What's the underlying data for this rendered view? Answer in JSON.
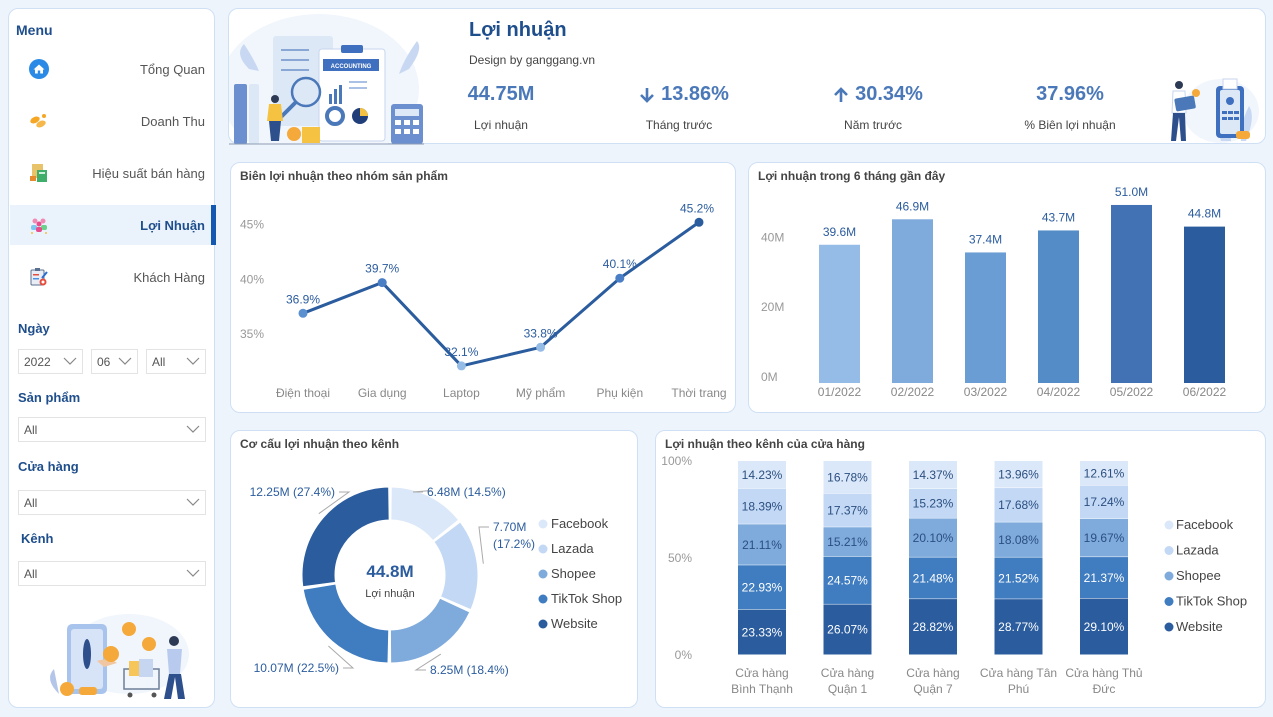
{
  "sidebar": {
    "menu_title": "Menu",
    "items": [
      {
        "label": "Tổng Quan",
        "icon": "home-icon",
        "active": false
      },
      {
        "label": "Doanh Thu",
        "icon": "coins-icon",
        "active": false
      },
      {
        "label": "Hiệu suất bán hàng",
        "icon": "calculator-icon",
        "active": false
      },
      {
        "label": "Lợi Nhuận",
        "icon": "team-icon",
        "active": true
      },
      {
        "label": "Khách Hàng",
        "icon": "clipboard-icon",
        "active": false
      }
    ],
    "filters": {
      "date_label": "Ngày",
      "year": "2022",
      "month": "06",
      "day": "All",
      "product_label": "Sản phẩm",
      "product": "All",
      "store_label": "Cửa hàng",
      "store": "All",
      "channel_label": "Kênh",
      "channel": "All"
    }
  },
  "header": {
    "title": "Lợi nhuận",
    "subtitle": "Design by ganggang.vn",
    "illustration_text": "ACCOUNTING",
    "kpis": [
      {
        "value": "44.75M",
        "label": "Lợi nhuận",
        "arrow": null
      },
      {
        "value": "13.86%",
        "label": "Tháng trước",
        "arrow": "down"
      },
      {
        "value": "30.34%",
        "label": "Năm trước",
        "arrow": "up"
      },
      {
        "value": "37.96%",
        "label": "% Biên lợi nhuận",
        "arrow": null
      }
    ]
  },
  "colors": {
    "primary": "#1f4e8c",
    "series": [
      "#dbe8f9",
      "#c2d8f5",
      "#7fabdc",
      "#3f7cc0",
      "#2b5c9e"
    ],
    "bars": [
      "#95bbe7",
      "#7fabdc",
      "#6a9dd4",
      "#548cc8",
      "#4272b4",
      "#2b5c9e"
    ],
    "line": "#2b5c9e"
  },
  "chart_data": [
    {
      "type": "line",
      "title": "Biên lợi nhuận theo nhóm sản phẩm",
      "categories": [
        "Điện thoại",
        "Gia dụng",
        "Laptop",
        "Mỹ phẩm",
        "Phụ kiện",
        "Thời trang"
      ],
      "values": [
        36.9,
        39.7,
        32.1,
        33.8,
        40.1,
        45.2
      ],
      "labels": [
        "36.9%",
        "39.7%",
        "32.1%",
        "33.8%",
        "40.1%",
        "45.2%"
      ],
      "yticks": [
        "35%",
        "40%",
        "45%"
      ],
      "ytick_values": [
        35,
        40,
        45
      ],
      "ylim": [
        31,
        46.5
      ]
    },
    {
      "type": "bar",
      "title": "Lợi nhuận trong 6 tháng gần đây",
      "categories": [
        "01/2022",
        "02/2022",
        "03/2022",
        "04/2022",
        "05/2022",
        "06/2022"
      ],
      "values": [
        39.6,
        46.9,
        37.4,
        43.7,
        51.0,
        44.8
      ],
      "labels": [
        "39.6M",
        "46.9M",
        "37.4M",
        "43.7M",
        "51.0M",
        "44.8M"
      ],
      "yticks": [
        "0M",
        "20M",
        "40M"
      ],
      "ytick_values": [
        0,
        20,
        40
      ],
      "ylim": [
        0,
        55
      ]
    },
    {
      "type": "pie",
      "title": "Cơ cấu lợi nhuận theo kênh",
      "center_value": "44.8M",
      "center_label": "Lợi nhuận",
      "slices": [
        {
          "name": "Facebook",
          "value": 6.48,
          "pct": 14.5,
          "label": "6.48M (14.5%)"
        },
        {
          "name": "Lazada",
          "value": 7.7,
          "pct": 17.2,
          "label": "7.70M (17.2%)"
        },
        {
          "name": "Shopee",
          "value": 8.25,
          "pct": 18.4,
          "label": "8.25M (18.4%)"
        },
        {
          "name": "TikTok Shop",
          "value": 10.07,
          "pct": 22.5,
          "label": "10.07M (22.5%)"
        },
        {
          "name": "Website",
          "value": 12.25,
          "pct": 27.4,
          "label": "12.25M (27.4%)"
        }
      ],
      "legend": [
        "Facebook",
        "Lazada",
        "Shopee",
        "TikTok Shop",
        "Website"
      ]
    },
    {
      "type": "bar",
      "stacked": "100%",
      "title": "Lợi nhuận theo kênh của cửa hàng",
      "categories": [
        [
          "Cửa hàng",
          "Bình Thạnh"
        ],
        [
          "Cửa hàng",
          "Quận 1"
        ],
        [
          "Cửa hàng",
          "Quận 7"
        ],
        [
          "Cửa hàng Tân",
          "Phú"
        ],
        [
          "Cửa hàng Thủ",
          "Đức"
        ]
      ],
      "yticks": [
        "0%",
        "50%",
        "100%"
      ],
      "ytick_values": [
        0,
        50,
        100
      ],
      "series": [
        {
          "name": "Website",
          "values": [
            23.33,
            26.07,
            28.82,
            28.77,
            29.1
          ]
        },
        {
          "name": "TikTok Shop",
          "values": [
            22.93,
            24.57,
            21.48,
            21.52,
            21.37
          ]
        },
        {
          "name": "Shopee",
          "values": [
            21.11,
            15.21,
            20.1,
            18.08,
            19.67
          ]
        },
        {
          "name": "Lazada",
          "values": [
            18.39,
            17.37,
            15.23,
            17.68,
            17.24
          ]
        },
        {
          "name": "Facebook",
          "values": [
            14.23,
            16.78,
            14.37,
            13.96,
            12.61
          ]
        }
      ],
      "legend": [
        "Facebook",
        "Lazada",
        "Shopee",
        "TikTok Shop",
        "Website"
      ]
    }
  ]
}
